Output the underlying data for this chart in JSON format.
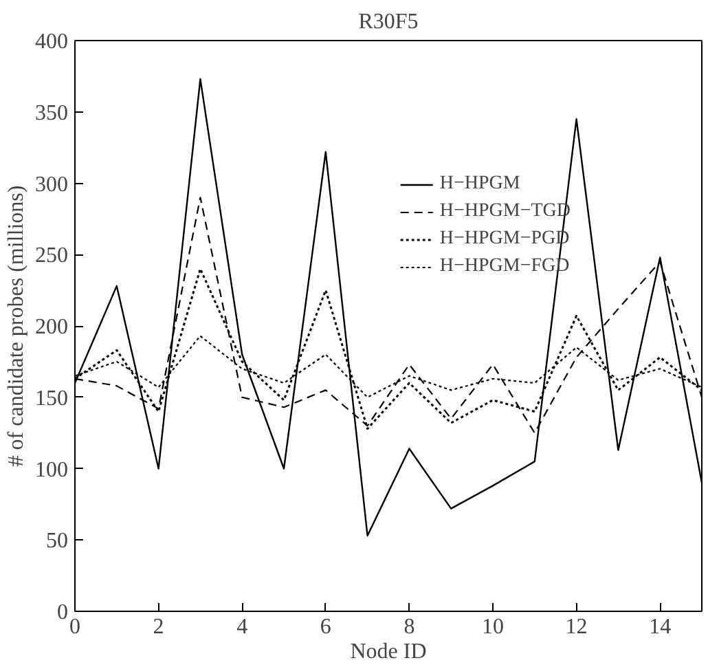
{
  "chart_data": {
    "type": "line",
    "title": "R30F5",
    "xlabel": "Node ID",
    "ylabel": "# of candidate probes (millions)",
    "x": [
      0,
      1,
      2,
      3,
      4,
      5,
      6,
      7,
      8,
      9,
      10,
      11,
      12,
      13,
      14,
      15
    ],
    "xlim": [
      0,
      15
    ],
    "xticks": [
      0,
      2,
      4,
      6,
      8,
      10,
      12,
      14
    ],
    "ylim": [
      0,
      400
    ],
    "yticks": [
      0,
      50,
      100,
      150,
      200,
      250,
      300,
      350,
      400
    ],
    "grid": false,
    "legend": "top right",
    "marker": "none",
    "series": [
      {
        "name": "H−HPGM",
        "color": "#000000",
        "line_style": "solid",
        "values": [
          160,
          228,
          100,
          373,
          180,
          100,
          322,
          53,
          114,
          72,
          88,
          105,
          345,
          113,
          248,
          90
        ]
      },
      {
        "name": "H−HPGM−TGD",
        "color": "#000000",
        "line_style": "dashed",
        "values": [
          163,
          158,
          142,
          290,
          150,
          143,
          155,
          130,
          173,
          135,
          173,
          125,
          178,
          212,
          245,
          150
        ]
      },
      {
        "name": "H−HPGM−PGD",
        "color": "#000000",
        "line_style": "dotted",
        "values": [
          163,
          183,
          140,
          240,
          175,
          148,
          225,
          128,
          160,
          132,
          148,
          140,
          207,
          155,
          178,
          155
        ]
      },
      {
        "name": "H−HPGM−FGD",
        "color": "#000000",
        "line_style": "dotted",
        "values": [
          165,
          175,
          157,
          193,
          170,
          160,
          180,
          150,
          165,
          155,
          163,
          160,
          185,
          162,
          170,
          157
        ]
      }
    ]
  }
}
